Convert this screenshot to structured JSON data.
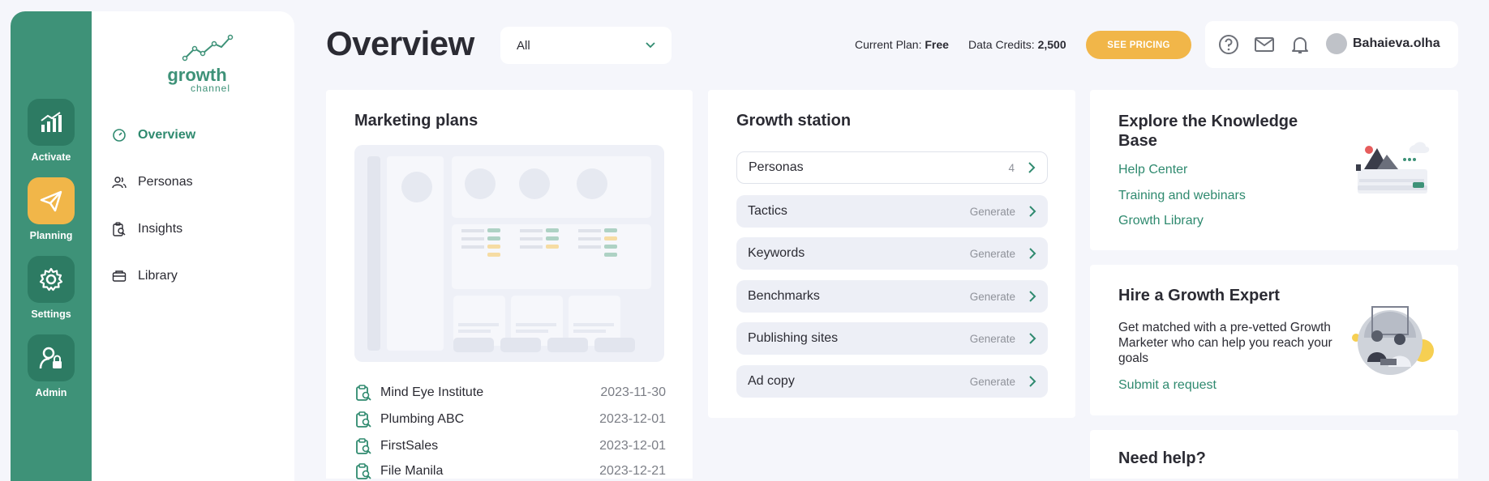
{
  "rail": {
    "items": [
      {
        "label": "Activate",
        "icon": "chart-bars-icon"
      },
      {
        "label": "Planning",
        "icon": "paper-plane-icon"
      },
      {
        "label": "Settings",
        "icon": "gear-icon"
      },
      {
        "label": "Admin",
        "icon": "user-lock-icon"
      }
    ]
  },
  "logo": {
    "title": "growth",
    "subtitle": "channel"
  },
  "sidebar": {
    "items": [
      {
        "label": "Overview",
        "icon": "gauge-icon"
      },
      {
        "label": "Personas",
        "icon": "users-icon"
      },
      {
        "label": "Insights",
        "icon": "clipboard-search-icon"
      },
      {
        "label": "Library",
        "icon": "folder-icon"
      }
    ]
  },
  "header": {
    "title": "Overview",
    "filter_value": "All",
    "plan_label": "Current Plan:",
    "plan_value": "Free",
    "credits_label": "Data Credits:",
    "credits_value": "2,500",
    "pricing_button": "SEE PRICING",
    "username": "Bahaieva.olha"
  },
  "marketing_plans": {
    "title": "Marketing plans",
    "rows": [
      {
        "name": "Mind Eye Institute",
        "date": "2023-11-30"
      },
      {
        "name": "Plumbing ABC",
        "date": "2023-12-01"
      },
      {
        "name": "FirstSales",
        "date": "2023-12-01"
      },
      {
        "name": "File Manila",
        "date": "2023-12-21"
      }
    ]
  },
  "growth_station": {
    "title": "Growth station",
    "rows": [
      {
        "label": "Personas",
        "meta": "4"
      },
      {
        "label": "Tactics",
        "meta": "Generate"
      },
      {
        "label": "Keywords",
        "meta": "Generate"
      },
      {
        "label": "Benchmarks",
        "meta": "Generate"
      },
      {
        "label": "Publishing sites",
        "meta": "Generate"
      },
      {
        "label": "Ad copy",
        "meta": "Generate"
      }
    ]
  },
  "knowledge_base": {
    "title": "Explore the Knowledge Base",
    "links": [
      "Help Center",
      "Training and webinars",
      "Growth Library"
    ]
  },
  "expert": {
    "title": "Hire a Growth Expert",
    "body": "Get matched with a pre-vetted Growth Marketer who can help you reach your goals",
    "link": "Submit a request"
  },
  "help": {
    "title": "Need help?"
  },
  "colors": {
    "brand_green": "#3e9278",
    "accent_yellow": "#f1b649",
    "link_green": "#2f8a6f"
  }
}
